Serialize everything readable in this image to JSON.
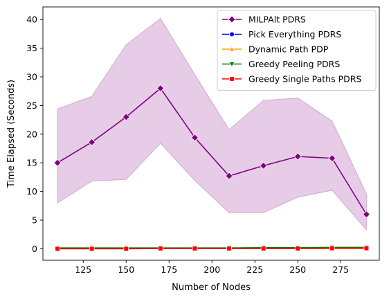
{
  "chart_data": {
    "type": "line",
    "title": "",
    "xlabel": "Number of Nodes",
    "ylabel": "Time Elapsed (Seconds)",
    "xlim": [
      101.5,
      297.5
    ],
    "ylim": [
      -2.0,
      42.2
    ],
    "x_ticks": [
      125,
      150,
      175,
      200,
      225,
      250,
      275
    ],
    "y_ticks": [
      0,
      5,
      10,
      15,
      20,
      25,
      30,
      35,
      40
    ],
    "grid": false,
    "legend_position": "top-right",
    "x": [
      110,
      130,
      150,
      170,
      190,
      210,
      230,
      250,
      270,
      290
    ],
    "series": [
      {
        "name": "MILPAlt PDRS",
        "color": "#800080",
        "marker": "diamond",
        "values": [
          15.0,
          18.6,
          23.0,
          28.0,
          19.4,
          12.7,
          14.5,
          16.1,
          15.8,
          6.0
        ],
        "band_lower": [
          8.0,
          11.8,
          12.1,
          18.4,
          11.9,
          6.3,
          6.3,
          9.0,
          10.2,
          3.3
        ],
        "band_upper": [
          24.4,
          26.6,
          35.6,
          40.2,
          30.4,
          20.8,
          25.9,
          26.3,
          22.3,
          9.6
        ],
        "band_color": "#800080"
      },
      {
        "name": "Pick Everything PDRS",
        "color": "#0000ff",
        "marker": "circle",
        "values": [
          0.1,
          0.1,
          0.1,
          0.1,
          0.1,
          0.1,
          0.1,
          0.1,
          0.1,
          0.1
        ]
      },
      {
        "name": "Dynamic Path PDP",
        "color": "#ffa500",
        "marker": "triangle-up",
        "values": [
          0.05,
          0.05,
          0.05,
          0.05,
          0.05,
          0.05,
          0.05,
          0.05,
          0.05,
          0.05
        ]
      },
      {
        "name": "Greedy Peeling PDRS",
        "color": "#008000",
        "marker": "triangle-down",
        "values": [
          0.15,
          0.15,
          0.15,
          0.15,
          0.15,
          0.15,
          0.2,
          0.2,
          0.25,
          0.25
        ]
      },
      {
        "name": "Greedy Single Paths PDRS",
        "color": "#ff0000",
        "marker": "square",
        "values": [
          0.0,
          0.0,
          0.0,
          0.05,
          0.05,
          0.05,
          0.05,
          0.05,
          0.1,
          0.1
        ]
      }
    ]
  }
}
